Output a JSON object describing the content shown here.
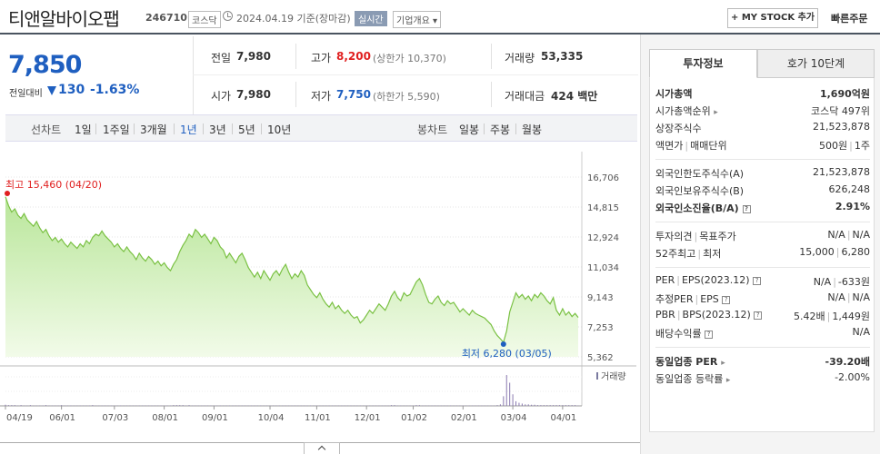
{
  "header": {
    "name": "티앤알바이오팹",
    "code": "246710",
    "market": "코스닥",
    "date": "2024.04.19  기준(장마감)",
    "realtime": "실시간",
    "corp_overview": "기업개요 ▾",
    "mystock": "+ MY STOCK 추가",
    "quick_order": "빠른주문"
  },
  "quote": {
    "price": "7,850",
    "change_label": "전일대비",
    "change": "130",
    "change_pct": "-1.63%",
    "prev_label": "전일",
    "prev": "7,980",
    "high_label": "고가",
    "high": "8,200",
    "upper_limit": "(상한가 10,370)",
    "volume_label": "거래량",
    "volume": "53,335",
    "open_label": "시가",
    "open": "7,980",
    "low_label": "저가",
    "low": "7,750",
    "lower_limit": "(하한가 5,590)",
    "amount_label": "거래대금",
    "amount": "424 백만"
  },
  "periods": {
    "line_label": "선차트",
    "line": [
      "1일",
      "1주일",
      "3개월",
      "1년",
      "3년",
      "5년",
      "10년"
    ],
    "candle_label": "봉차트",
    "candle": [
      "일봉",
      "주봉",
      "월봉"
    ]
  },
  "panel": {
    "tab_invest": "투자정보",
    "tab_quote": "호가 10단계",
    "market_cap_label": "시가총액",
    "market_cap": "1,690억원",
    "cap_rank_label": "시가총액순위",
    "cap_rank": "코스닥 497위",
    "shares_label": "상장주식수",
    "shares": "21,523,878",
    "par_label": "액면가",
    "unit_label": "매매단위",
    "par_value": "500원",
    "unit_value": "1주",
    "foreign_limit_label": "외국인한도주식수(A)",
    "foreign_limit": "21,523,878",
    "foreign_hold_label": "외국인보유주식수(B)",
    "foreign_hold": "626,248",
    "foreign_ratio_label": "외국인소진율(B/A)",
    "foreign_ratio": "2.91%",
    "opinion_label": "투자의견",
    "target_label": "목표주가",
    "opinion": "N/A",
    "target": "N/A",
    "w52_label": "52주최고",
    "w52_low_label": "최저",
    "w52_high": "15,000",
    "w52_low": "6,280",
    "per_label": "PER",
    "eps_label": "EPS(2023.12)",
    "per": "N/A",
    "eps": "-633원",
    "est_per_label": "추정PER",
    "est_eps_label": "EPS",
    "est_per": "N/A",
    "est_eps": "N/A",
    "pbr_label": "PBR",
    "bps_label": "BPS(2023.12)",
    "pbr": "5.42배",
    "bps": "1,449원",
    "div_label": "배당수익률",
    "div": "N/A",
    "sector_per_label": "동일업종 PER",
    "sector_per": "-39.20배",
    "sector_chg_label": "동일업종 등락률",
    "sector_chg": "-2.00%"
  },
  "chart_data": {
    "type": "area",
    "y_ticks": [
      "16,706",
      "14,815",
      "12,924",
      "11,034",
      "9,143",
      "7,253",
      "5,362"
    ],
    "ylim": [
      5362,
      16706
    ],
    "x_ticks": [
      "04/19",
      "06/01",
      "07/03",
      "08/01",
      "09/01",
      "10/04",
      "11/01",
      "12/01",
      "01/02",
      "02/01",
      "03/04",
      "04/01"
    ],
    "high_annotation": "최고 15,460 (04/20)",
    "low_annotation": "최저 6,280 (03/05)",
    "volume_label": "거래량",
    "high_value": 15460,
    "low_value": 6280,
    "series": [
      {
        "values": [
          15460,
          14900,
          14500,
          14700,
          14300,
          14100,
          14400,
          14000,
          13800,
          13600,
          13900,
          13500,
          13200,
          13400,
          13000,
          12700,
          12900,
          12600,
          12800,
          12500,
          12300,
          12600,
          12400,
          12200,
          12500,
          12300,
          12700,
          12500,
          12900,
          13100,
          13000,
          13300,
          13000,
          12800,
          12600,
          12300,
          12500,
          12200,
          12000,
          12300,
          12000,
          11800,
          11500,
          11900,
          11600,
          11400,
          11700,
          11500,
          11200,
          11400,
          11100,
          11300,
          11000,
          10800,
          11200,
          11500,
          12000,
          12400,
          12700,
          13100,
          12900,
          13400,
          13200,
          12900,
          13100,
          12800,
          12500,
          12900,
          12700,
          12300,
          12100,
          11600,
          11900,
          11600,
          11300,
          11700,
          11900,
          11500,
          11000,
          10700,
          10400,
          10700,
          10300,
          10800,
          10500,
          10200,
          10600,
          10800,
          10500,
          10900,
          11200,
          10700,
          10300,
          10600,
          10400,
          10800,
          10500,
          9900,
          9600,
          9300,
          9100,
          9400,
          9000,
          8700,
          8500,
          8800,
          8400,
          8600,
          8300,
          8100,
          8300,
          8000,
          7800,
          7900,
          7500,
          7700,
          8000,
          8300,
          8100,
          8400,
          8700,
          8500,
          8300,
          8700,
          9200,
          9500,
          9100,
          8900,
          9400,
          9200,
          9300,
          9700,
          10100,
          10300,
          9900,
          9300,
          8800,
          8700,
          9000,
          9200,
          8800,
          8600,
          8900,
          8700,
          8800,
          8500,
          8200,
          8400,
          8200,
          8000,
          8300,
          8100,
          8000,
          7900,
          7800,
          7600,
          7400,
          7000,
          6700,
          6500,
          6280,
          7000,
          8200,
          8800,
          9400,
          9100,
          9300,
          9000,
          9200,
          8900,
          9300,
          9100,
          9400,
          9200,
          8900,
          8700,
          9100,
          8300,
          8000,
          8400,
          8000,
          8200,
          7900,
          8100,
          7850
        ]
      }
    ],
    "volume": [
      3,
      2,
      2,
      2,
      1,
      2,
      1,
      1,
      2,
      1,
      1,
      1,
      1,
      2,
      1,
      1,
      1,
      1,
      2,
      1,
      1,
      1,
      1,
      1,
      1,
      1,
      1,
      1,
      2,
      1,
      1,
      1,
      1,
      1,
      1,
      1,
      1,
      1,
      1,
      1,
      1,
      1,
      1,
      1,
      1,
      1,
      1,
      1,
      1,
      1,
      1,
      1,
      1,
      1,
      2,
      2,
      2,
      2,
      1,
      2,
      1,
      1,
      1,
      1,
      1,
      1,
      1,
      1,
      1,
      1,
      1,
      1,
      1,
      1,
      1,
      1,
      1,
      1,
      1,
      1,
      1,
      1,
      1,
      1,
      1,
      1,
      1,
      1,
      1,
      1,
      1,
      1,
      1,
      1,
      1,
      1,
      1,
      1,
      1,
      1,
      1,
      1,
      1,
      1,
      1,
      1,
      1,
      1,
      1,
      1,
      1,
      1,
      1,
      1,
      1,
      1,
      1,
      1,
      1,
      1,
      1,
      1,
      1,
      1,
      2,
      2,
      1,
      1,
      1,
      1,
      1,
      1,
      2,
      2,
      1,
      1,
      1,
      1,
      1,
      1,
      1,
      1,
      1,
      1,
      1,
      1,
      1,
      1,
      1,
      1,
      1,
      1,
      1,
      1,
      1,
      1,
      1,
      1,
      2,
      4,
      25,
      80,
      60,
      30,
      12,
      8,
      6,
      4,
      4,
      3,
      3,
      2,
      2,
      2,
      2,
      2,
      2,
      2,
      2,
      2,
      2,
      2,
      2,
      2,
      1
    ]
  }
}
